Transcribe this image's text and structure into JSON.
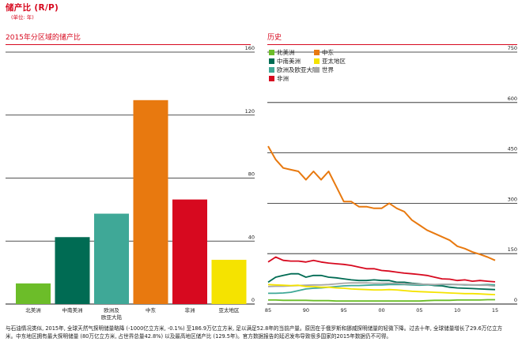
{
  "header": {
    "title": "储产比 (R/P)",
    "unit": "(单位: 年)"
  },
  "left_panel": {
    "title": "2015年分区域的储产比"
  },
  "right_panel": {
    "title": "历史"
  },
  "caption": "与石油情况类似, 2015年, 全球天然气探明储量略降 (-1000亿立方米, -0.1%) 至186.9万亿立方米, 足以满足52.8年的当前产量。原因在于俄罗斯和挪威探明储量的轻微下降。过去十年, 全球储量增长了29.6万亿立方米。中东地区拥有最大探明储量 (80万亿立方米, 占世界总量42.8%) 以及最高地区储产比 (129.5年)。官方数据报告的延迟发布导致很多国家的2015年数据仍不可得。",
  "colors": {
    "accent": "#d7091f",
    "北美洲": "#6cbd29",
    "中南美洲": "#006b53",
    "欧洲及欧亚大陆": "#3fa897",
    "中东": "#e8790f",
    "非洲": "#d7091f",
    "亚太地区": "#f5e300",
    "世界": "#a8a8a8"
  },
  "chart_data": [
    {
      "type": "bar",
      "title": "2015年分区域的储产比",
      "categories": [
        "北美洲",
        "中南美洲",
        "欧洲及\n欧亚大陆",
        "中东",
        "非洲",
        "亚太地区"
      ],
      "values": [
        13.1,
        42.5,
        57.4,
        129.5,
        66.4,
        28.1
      ],
      "ylim": [
        0,
        160
      ],
      "yticks": [
        "0",
        "40",
        "80",
        "120",
        "160"
      ],
      "grid": true
    },
    {
      "type": "line",
      "title": "历史",
      "x": [
        1985,
        1986,
        1987,
        1988,
        1989,
        1990,
        1991,
        1992,
        1993,
        1994,
        1995,
        1996,
        1997,
        1998,
        1999,
        2000,
        2001,
        2002,
        2003,
        2004,
        2005,
        2006,
        2007,
        2008,
        2009,
        2010,
        2011,
        2012,
        2013,
        2014,
        2015
      ],
      "xticks": [
        "85",
        "90",
        "95",
        "00",
        "05",
        "10",
        "15"
      ],
      "ylim": [
        0,
        750
      ],
      "yticks": [
        "0",
        "150",
        "300",
        "450",
        "600",
        "750"
      ],
      "legend": [
        "北美洲",
        "中东",
        "中南美洲",
        "亚太地区",
        "欧洲及欧亚大陆",
        "世界",
        "非洲"
      ],
      "legend_placement": "top-left",
      "grid": true,
      "series": [
        {
          "name": "中东",
          "values": [
            470,
            430,
            405,
            400,
            395,
            370,
            395,
            370,
            395,
            350,
            305,
            305,
            290,
            290,
            285,
            285,
            300,
            285,
            275,
            250,
            235,
            220,
            210,
            200,
            190,
            172,
            165,
            155,
            148,
            140,
            130
          ]
        },
        {
          "name": "非洲",
          "values": [
            125,
            140,
            130,
            128,
            128,
            125,
            130,
            125,
            122,
            120,
            118,
            115,
            110,
            105,
            105,
            100,
            98,
            95,
            92,
            90,
            88,
            85,
            80,
            75,
            74,
            70,
            72,
            68,
            70,
            68,
            66
          ]
        },
        {
          "name": "中南美洲",
          "values": [
            65,
            80,
            85,
            90,
            90,
            80,
            85,
            85,
            80,
            78,
            75,
            72,
            70,
            70,
            72,
            70,
            70,
            65,
            65,
            62,
            60,
            58,
            55,
            54,
            50,
            48,
            47,
            46,
            45,
            44,
            43
          ]
        },
        {
          "name": "欧洲及欧亚大陆",
          "values": [
            32,
            32,
            33,
            35,
            40,
            45,
            47,
            48,
            50,
            52,
            54,
            55,
            55,
            56,
            57,
            57,
            58,
            58,
            58,
            57,
            56,
            57,
            57,
            58,
            58,
            58,
            57,
            57,
            57,
            58,
            57
          ]
        },
        {
          "name": "世界",
          "values": [
            52,
            53,
            53,
            54,
            55,
            56,
            57,
            57,
            58,
            60,
            62,
            63,
            63,
            63,
            62,
            62,
            62,
            62,
            60,
            60,
            59,
            59,
            58,
            59,
            59,
            58,
            58,
            57,
            56,
            56,
            53
          ]
        },
        {
          "name": "亚太地区",
          "values": [
            58,
            57,
            56,
            55,
            56,
            52,
            52,
            50,
            50,
            48,
            47,
            45,
            44,
            43,
            42,
            42,
            43,
            42,
            40,
            38,
            37,
            36,
            35,
            34,
            33,
            32,
            31,
            31,
            30,
            29,
            28
          ]
        },
        {
          "name": "北美洲",
          "values": [
            12,
            12,
            11,
            11,
            11,
            11,
            10,
            10,
            10,
            9,
            9,
            9,
            9,
            9,
            9,
            9,
            9,
            9,
            9,
            9,
            9,
            10,
            11,
            11,
            11,
            12,
            12,
            12,
            12,
            13,
            13
          ]
        }
      ]
    }
  ]
}
